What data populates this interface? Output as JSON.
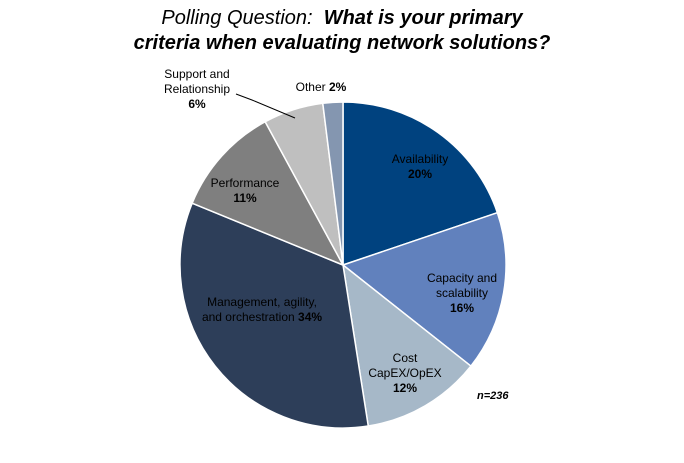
{
  "title": {
    "prefix": "Polling Question:",
    "main": "What is your primary criteria when evaluating network solutions?",
    "line2": "criteria when evaluating network solutions?"
  },
  "note": "n=236",
  "chart_data": {
    "type": "pie",
    "title": "Polling Question: What is your primary criteria when evaluating network solutions?",
    "slices": [
      {
        "label": [
          "Availability"
        ],
        "value": 20,
        "value_label": "20%",
        "color": "#00427f",
        "text_color": "#000000"
      },
      {
        "label": [
          "Capacity and",
          "scalability"
        ],
        "value": 16,
        "value_label": "16%",
        "color": "#6181bd",
        "text_color": "#000000"
      },
      {
        "label": [
          "Cost",
          "CapEX/OpEX"
        ],
        "value": 12,
        "value_label": "12%",
        "color": "#a6b8c8",
        "text_color": "#000000"
      },
      {
        "label": [
          "Management, agility,",
          "and orchestration"
        ],
        "value": 34,
        "value_label": "34%",
        "color": "#2d3e59",
        "text_color": "#000000"
      },
      {
        "label": [
          "Performance"
        ],
        "value": 11,
        "value_label": "11%",
        "color": "#7f7f7f",
        "text_color": "#000000"
      },
      {
        "label": [
          "Support and",
          "Relationship"
        ],
        "value": 6,
        "value_label": "6%",
        "color": "#bfbfbf",
        "text_color": "#000000"
      },
      {
        "label": [
          "Other"
        ],
        "value": 2,
        "value_label": "2%",
        "color": "#8496b0",
        "text_color": "#000000"
      }
    ],
    "legend": "none"
  }
}
